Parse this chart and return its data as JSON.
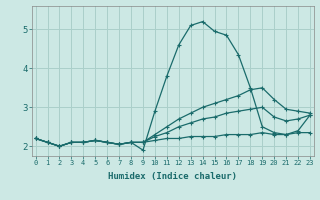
{
  "bg_color": "#cce8e4",
  "line_color": "#1a6b6b",
  "grid_color": "#aacfca",
  "xlabel": "Humidex (Indice chaleur)",
  "xticks": [
    0,
    1,
    2,
    3,
    4,
    5,
    6,
    7,
    8,
    9,
    10,
    11,
    12,
    13,
    14,
    15,
    16,
    17,
    18,
    19,
    20,
    21,
    22,
    23
  ],
  "yticks": [
    2,
    3,
    4,
    5
  ],
  "ylim": [
    1.75,
    5.6
  ],
  "xlim": [
    -0.3,
    23.3
  ],
  "series": [
    {
      "x": [
        0,
        1,
        2,
        3,
        4,
        5,
        6,
        7,
        8,
        9,
        10,
        11,
        12,
        13,
        14,
        15,
        16,
        17,
        18,
        19,
        20,
        21,
        22,
        23
      ],
      "y": [
        2.2,
        2.1,
        2.0,
        2.1,
        2.1,
        2.15,
        2.1,
        2.05,
        2.1,
        2.1,
        2.15,
        2.2,
        2.2,
        2.25,
        2.25,
        2.25,
        2.3,
        2.3,
        2.3,
        2.35,
        2.3,
        2.3,
        2.35,
        2.35
      ]
    },
    {
      "x": [
        0,
        1,
        2,
        3,
        4,
        5,
        6,
        7,
        8,
        9,
        10,
        11,
        12,
        13,
        14,
        15,
        16,
        17,
        18,
        19,
        20,
        21,
        22,
        23
      ],
      "y": [
        2.2,
        2.1,
        2.0,
        2.1,
        2.1,
        2.15,
        2.1,
        2.05,
        2.1,
        1.9,
        2.9,
        3.8,
        4.6,
        5.1,
        5.2,
        4.95,
        4.85,
        4.35,
        3.5,
        2.5,
        2.35,
        2.3,
        2.4,
        2.8
      ]
    },
    {
      "x": [
        0,
        1,
        2,
        3,
        4,
        5,
        6,
        7,
        8,
        9,
        10,
        11,
        12,
        13,
        14,
        15,
        16,
        17,
        18,
        19,
        20,
        21,
        22,
        23
      ],
      "y": [
        2.2,
        2.1,
        2.0,
        2.1,
        2.1,
        2.15,
        2.1,
        2.05,
        2.1,
        2.1,
        2.3,
        2.5,
        2.7,
        2.85,
        3.0,
        3.1,
        3.2,
        3.3,
        3.45,
        3.5,
        3.2,
        2.95,
        2.9,
        2.85
      ]
    },
    {
      "x": [
        0,
        1,
        2,
        3,
        4,
        5,
        6,
        7,
        8,
        9,
        10,
        11,
        12,
        13,
        14,
        15,
        16,
        17,
        18,
        19,
        20,
        21,
        22,
        23
      ],
      "y": [
        2.2,
        2.1,
        2.0,
        2.1,
        2.1,
        2.15,
        2.1,
        2.05,
        2.1,
        2.1,
        2.25,
        2.35,
        2.5,
        2.6,
        2.7,
        2.75,
        2.85,
        2.9,
        2.95,
        3.0,
        2.75,
        2.65,
        2.7,
        2.8
      ]
    }
  ]
}
